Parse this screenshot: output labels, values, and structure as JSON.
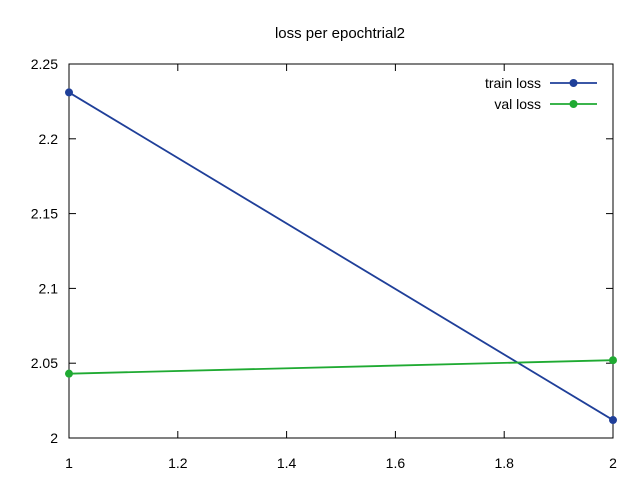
{
  "chart_data": {
    "type": "line",
    "title": "loss per epochtrial2",
    "xlabel": "",
    "ylabel": "",
    "xlim": [
      1,
      2
    ],
    "ylim": [
      2,
      2.25
    ],
    "xticks": [
      1,
      1.2,
      1.4,
      1.6,
      1.8,
      2
    ],
    "yticks": [
      2,
      2.05,
      2.1,
      2.15,
      2.2,
      2.25
    ],
    "xtick_labels": [
      "1",
      "1.2",
      "1.4",
      "1.6",
      "1.8",
      "2"
    ],
    "ytick_labels": [
      "2",
      "2.05",
      "2.1",
      "2.15",
      "2.2",
      "2.25"
    ],
    "grid": false,
    "legend_position": "top-right",
    "series": [
      {
        "name": "train loss",
        "color": "#1f3f99",
        "x": [
          1,
          2
        ],
        "y": [
          2.231,
          2.012
        ]
      },
      {
        "name": "val loss",
        "color": "#1faa32",
        "x": [
          1,
          2
        ],
        "y": [
          2.043,
          2.052
        ]
      }
    ]
  }
}
